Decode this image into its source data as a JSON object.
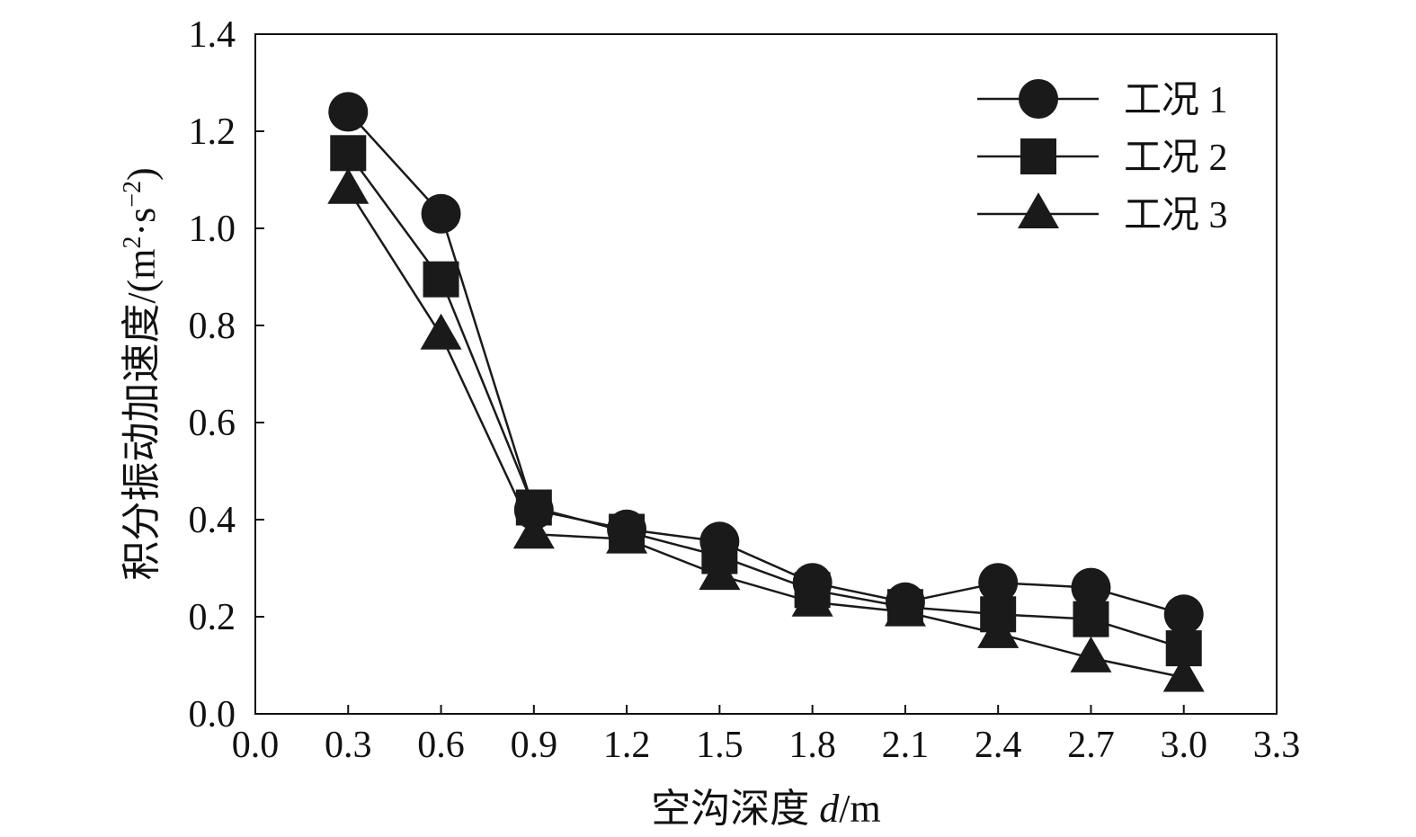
{
  "chart_data": {
    "type": "line",
    "x": [
      0.3,
      0.6,
      0.9,
      1.2,
      1.5,
      1.8,
      2.1,
      2.4,
      2.7,
      3.0
    ],
    "series": [
      {
        "name": "工况 1",
        "marker": "circle",
        "values": [
          1.24,
          1.03,
          0.42,
          0.38,
          0.355,
          0.27,
          0.23,
          0.27,
          0.26,
          0.205
        ]
      },
      {
        "name": "工况 2",
        "marker": "square",
        "values": [
          1.155,
          0.895,
          0.425,
          0.375,
          0.325,
          0.255,
          0.22,
          0.205,
          0.195,
          0.135
        ]
      },
      {
        "name": "工况 3",
        "marker": "triangle",
        "values": [
          1.08,
          0.78,
          0.37,
          0.36,
          0.285,
          0.23,
          0.21,
          0.165,
          0.115,
          0.075
        ]
      }
    ],
    "xlabel": {
      "prefix": "空沟深度 ",
      "var": "d",
      "unit": "/m"
    },
    "ylabel": {
      "main": "积分振动加速度/(m",
      "sup1": "2",
      "mid": "·s",
      "sup2": "−2",
      "end": ")"
    },
    "xlim": [
      0.0,
      3.3
    ],
    "ylim": [
      0.0,
      1.4
    ],
    "xticks": [
      "0.0",
      "0.3",
      "0.6",
      "0.9",
      "1.2",
      "1.5",
      "1.8",
      "2.1",
      "2.4",
      "2.7",
      "3.0",
      "3.3"
    ],
    "yticks": [
      "0.0",
      "0.2",
      "0.4",
      "0.6",
      "0.8",
      "1.0",
      "1.2",
      "1.4"
    ],
    "grid": false,
    "legend_position": "top-right",
    "colors": {
      "line": "#1a1a1a",
      "marker": "#1a1a1a",
      "axis": "#111111"
    }
  }
}
